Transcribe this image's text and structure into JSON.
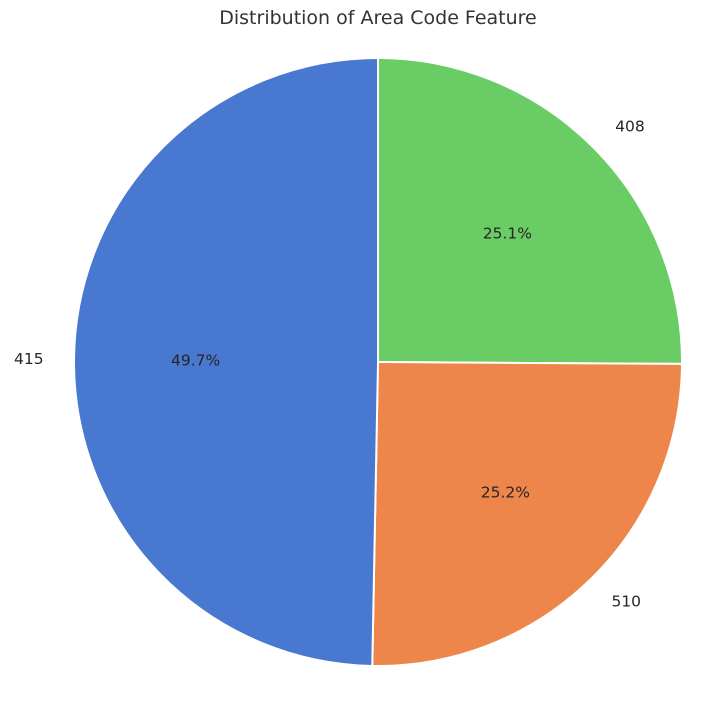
{
  "chart_data": {
    "type": "pie",
    "title": "Distribution of Area Code Feature",
    "slices": [
      {
        "label": "408",
        "value": 25.1,
        "pct_label": "25.1%",
        "color": "#6acc64"
      },
      {
        "label": "510",
        "value": 25.2,
        "pct_label": "25.2%",
        "color": "#ee854a"
      },
      {
        "label": "415",
        "value": 49.7,
        "pct_label": "49.7%",
        "color": "#4878d0"
      }
    ],
    "start_angle_deg": 90,
    "direction": "clockwise",
    "legend": "none"
  }
}
